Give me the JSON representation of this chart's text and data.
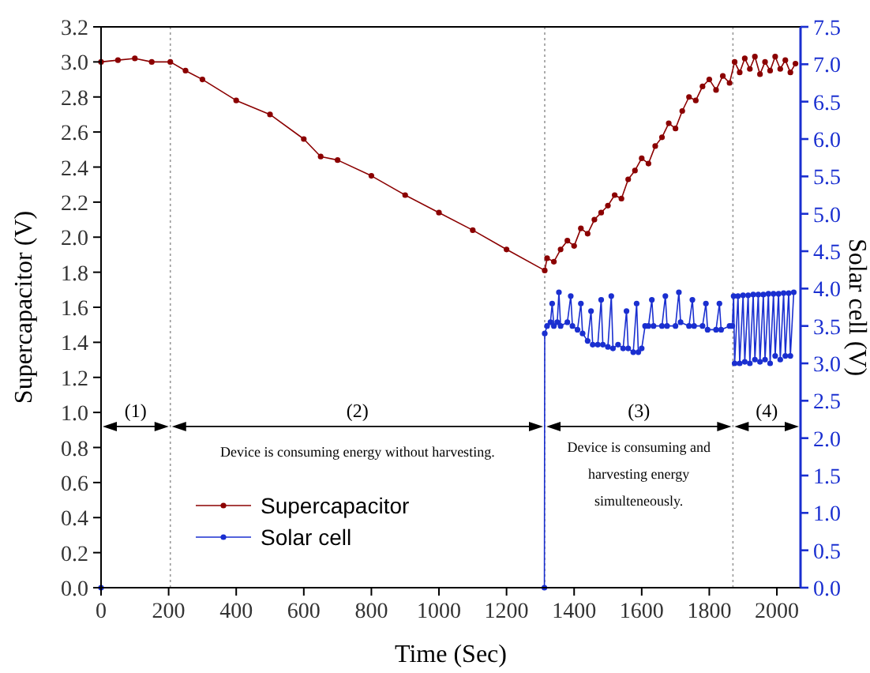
{
  "chart_data": {
    "type": "line",
    "xlabel": "Time (Sec)",
    "ylabel": "Supercapacitor (V)",
    "y2label": "Solar cell (V)",
    "xlim": [
      0,
      2070
    ],
    "xticks": [
      0,
      200,
      400,
      600,
      800,
      1000,
      1200,
      1400,
      1600,
      1800,
      2000
    ],
    "ylim": [
      0,
      3.2
    ],
    "yticks": [
      {
        "value": 0,
        "label": "0.0"
      },
      0.2,
      0.4,
      0.6,
      0.8,
      {
        "value": 1,
        "label": "1.0"
      },
      1.2,
      1.4,
      1.6,
      1.8,
      {
        "value": 2,
        "label": "2.0"
      },
      2.2,
      2.4,
      2.6,
      2.8,
      {
        "value": 3,
        "label": "3.0"
      },
      3.2
    ],
    "y2lim": [
      0,
      7.5
    ],
    "y2ticks": [
      {
        "value": 0,
        "label": "0.0"
      },
      0.5,
      {
        "value": 1,
        "label": "1.0"
      },
      1.5,
      {
        "value": 2,
        "label": "2.0"
      },
      2.5,
      {
        "value": 3,
        "label": "3.0"
      },
      3.5,
      {
        "value": 4,
        "label": "4.0"
      },
      4.5,
      {
        "value": 5,
        "label": "5.0"
      },
      5.5,
      {
        "value": 6,
        "label": "6.0"
      },
      6.5,
      {
        "value": 7,
        "label": "7.0"
      },
      7.5
    ],
    "grid": false,
    "legend": "bottom left",
    "marker": "circle",
    "line_style": "solid",
    "series": [
      {
        "name": "Supercapacitor",
        "color": "#8b0000",
        "x": [
          0,
          50,
          100,
          150,
          205,
          250,
          300,
          400,
          500,
          600,
          650,
          700,
          800,
          900,
          1000,
          1100,
          1200,
          1313,
          1320,
          1340,
          1360,
          1380,
          1400,
          1420,
          1440,
          1460,
          1480,
          1500,
          1520,
          1540,
          1560,
          1580,
          1600,
          1620,
          1640,
          1660,
          1680,
          1700,
          1720,
          1740,
          1760,
          1780,
          1800,
          1820,
          1840,
          1860,
          1875,
          1890,
          1905,
          1920,
          1935,
          1950,
          1965,
          1980,
          1995,
          2010,
          2025,
          2040,
          2055
        ],
        "values": [
          3.0,
          3.01,
          3.02,
          3.0,
          3.0,
          2.95,
          2.9,
          2.78,
          2.7,
          2.56,
          2.46,
          2.44,
          2.35,
          2.24,
          2.14,
          2.04,
          1.93,
          1.81,
          1.88,
          1.86,
          1.93,
          1.98,
          1.95,
          2.05,
          2.02,
          2.1,
          2.14,
          2.18,
          2.24,
          2.22,
          2.33,
          2.38,
          2.45,
          2.42,
          2.52,
          2.57,
          2.65,
          2.62,
          2.72,
          2.8,
          2.78,
          2.86,
          2.9,
          2.84,
          2.92,
          2.88,
          3.0,
          2.94,
          3.02,
          2.96,
          3.03,
          2.93,
          3.0,
          2.95,
          3.03,
          2.96,
          3.01,
          2.94,
          2.99
        ]
      },
      {
        "name": "Solar cell",
        "color": "#1a2fd0",
        "axis": "y2",
        "x": [
          0,
          1312,
          1313,
          1320,
          1330,
          1335,
          1340,
          1350,
          1355,
          1360,
          1380,
          1390,
          1395,
          1410,
          1420,
          1425,
          1440,
          1450,
          1455,
          1470,
          1480,
          1485,
          1500,
          1510,
          1515,
          1530,
          1545,
          1555,
          1560,
          1575,
          1585,
          1590,
          1600,
          1610,
          1620,
          1630,
          1635,
          1660,
          1670,
          1675,
          1700,
          1710,
          1715,
          1740,
          1750,
          1755,
          1780,
          1790,
          1795,
          1820,
          1830,
          1835,
          1860,
          1868,
          1872,
          1875,
          1885,
          1890,
          1900,
          1905,
          1915,
          1920,
          1930,
          1935,
          1945,
          1950,
          1960,
          1965,
          1975,
          1980,
          1990,
          1995,
          2005,
          2010,
          2020,
          2025,
          2035,
          2040,
          2050
        ],
        "values": [
          0,
          0,
          3.4,
          3.5,
          3.55,
          3.8,
          3.5,
          3.55,
          3.95,
          3.5,
          3.55,
          3.9,
          3.5,
          3.45,
          3.8,
          3.4,
          3.3,
          3.7,
          3.25,
          3.25,
          3.85,
          3.25,
          3.22,
          3.9,
          3.2,
          3.25,
          3.2,
          3.7,
          3.2,
          3.15,
          3.8,
          3.15,
          3.2,
          3.5,
          3.5,
          3.85,
          3.5,
          3.5,
          3.9,
          3.5,
          3.5,
          3.95,
          3.55,
          3.5,
          3.85,
          3.5,
          3.5,
          3.8,
          3.45,
          3.45,
          3.8,
          3.45,
          3.5,
          3.5,
          3.9,
          3.0,
          3.9,
          3.0,
          3.91,
          3.02,
          3.91,
          3.0,
          3.92,
          3.05,
          3.92,
          3.02,
          3.92,
          3.05,
          3.93,
          3.0,
          3.93,
          3.1,
          3.93,
          3.05,
          3.94,
          3.1,
          3.94,
          3.1,
          3.95
        ]
      }
    ],
    "ref_lines": [
      {
        "axis": "x",
        "value": 205,
        "color": "#999999",
        "line_style": "dotted"
      },
      {
        "axis": "x",
        "value": 1313,
        "color": "#999999",
        "line_style": "dotted"
      },
      {
        "axis": "x",
        "value": 1870,
        "color": "#999999",
        "line_style": "dotted"
      }
    ],
    "annotations": [
      "(1)",
      "(2)",
      "(3)",
      "(4)",
      "Device is consuming energy without harvesting.",
      "Device is consuming and\nharvesting energy\nsimulteneously."
    ]
  }
}
